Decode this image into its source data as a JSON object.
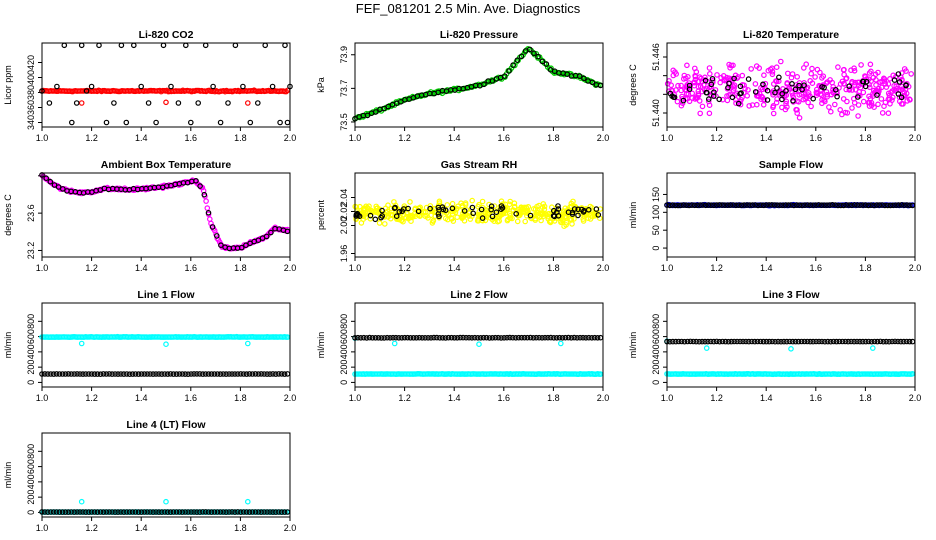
{
  "page_title": "FEF_081201  2.5 Min. Ave. Diagnostics",
  "colors": {
    "black": "#000000",
    "red": "#ff0000",
    "green": "#00cc00",
    "magenta": "#ff00ff",
    "yellow": "#ffff00",
    "blue": "#0000ff",
    "cyan": "#00ffff"
  },
  "chart_data": [
    {
      "id": "li820-co2",
      "type": "scatter",
      "title": "Li-820 CO2",
      "ylabel": "Licor ppm",
      "xlim": [
        1.0,
        2.0
      ],
      "ylim": [
        334,
        446
      ],
      "xticks": [
        "1.0",
        "1.2",
        "1.4",
        "1.6",
        "1.8",
        "2.0"
      ],
      "yticks": [
        {
          "value": 340,
          "label": "340"
        },
        {
          "value": 360,
          "label": "360"
        },
        {
          "value": 380,
          "label": "380"
        },
        {
          "value": 400,
          "label": "400"
        },
        {
          "value": 420,
          "label": "420"
        }
      ],
      "series": [
        {
          "name": "sampled",
          "color": "red",
          "kind": "dense",
          "baseline": 382,
          "noise": 1.2,
          "n": 170,
          "points": [
            [
              1.16,
              366
            ],
            [
              1.5,
              367
            ],
            [
              1.83,
              366
            ]
          ]
        },
        {
          "name": "lines",
          "color": "black",
          "kind": "sparse",
          "points": [
            [
              1.0,
              382
            ],
            [
              1.03,
              366
            ],
            [
              1.06,
              388
            ],
            [
              1.09,
              443
            ],
            [
              1.12,
              340
            ],
            [
              1.14,
              366
            ],
            [
              1.16,
              443
            ],
            [
              1.18,
              382
            ],
            [
              1.2,
              388
            ],
            [
              1.23,
              443
            ],
            [
              1.26,
              340
            ],
            [
              1.29,
              366
            ],
            [
              1.32,
              443
            ],
            [
              1.34,
              340
            ],
            [
              1.37,
              443
            ],
            [
              1.4,
              388
            ],
            [
              1.43,
              366
            ],
            [
              1.46,
              340
            ],
            [
              1.49,
              443
            ],
            [
              1.52,
              388
            ],
            [
              1.55,
              366
            ],
            [
              1.58,
              443
            ],
            [
              1.6,
              340
            ],
            [
              1.63,
              366
            ],
            [
              1.66,
              443
            ],
            [
              1.69,
              388
            ],
            [
              1.72,
              340
            ],
            [
              1.75,
              366
            ],
            [
              1.78,
              443
            ],
            [
              1.81,
              388
            ],
            [
              1.84,
              340
            ],
            [
              1.87,
              366
            ],
            [
              1.9,
              443
            ],
            [
              1.93,
              388
            ],
            [
              1.96,
              340
            ],
            [
              1.98,
              443
            ],
            [
              2.0,
              388
            ],
            [
              1.99,
              340
            ]
          ]
        }
      ]
    },
    {
      "id": "li820-pressure",
      "type": "scatter",
      "title": "Li-820 Pressure",
      "ylabel": "kPa",
      "xlim": [
        1.0,
        2.0
      ],
      "ylim": [
        73.47,
        73.97
      ],
      "xticks": [
        "1.0",
        "1.2",
        "1.4",
        "1.6",
        "1.8",
        "2.0"
      ],
      "yticks": [
        {
          "value": 73.5,
          "label": "73.5"
        },
        {
          "value": 73.7,
          "label": "73.7"
        },
        {
          "value": 73.9,
          "label": "73.9"
        }
      ],
      "series": [
        {
          "name": "sampled",
          "color": "green",
          "kind": "trend",
          "n": 150,
          "noise": 0.012,
          "trend": [
            [
              1.0,
              73.52
            ],
            [
              1.1,
              73.57
            ],
            [
              1.2,
              73.63
            ],
            [
              1.3,
              73.67
            ],
            [
              1.4,
              73.69
            ],
            [
              1.5,
              73.72
            ],
            [
              1.6,
              73.77
            ],
            [
              1.7,
              73.94
            ],
            [
              1.8,
              73.8
            ],
            [
              1.9,
              73.77
            ],
            [
              2.0,
              73.71
            ]
          ]
        },
        {
          "name": "lines",
          "color": "black",
          "kind": "trend",
          "n": 60,
          "noise": 0.01,
          "trend": [
            [
              1.0,
              73.52
            ],
            [
              1.1,
              73.57
            ],
            [
              1.2,
              73.63
            ],
            [
              1.3,
              73.67
            ],
            [
              1.4,
              73.69
            ],
            [
              1.5,
              73.72
            ],
            [
              1.6,
              73.77
            ],
            [
              1.7,
              73.94
            ],
            [
              1.8,
              73.8
            ],
            [
              1.9,
              73.77
            ],
            [
              2.0,
              73.71
            ]
          ]
        }
      ]
    },
    {
      "id": "li820-temperature",
      "type": "scatter",
      "title": "Li-820 Temperature",
      "ylabel": "degrees C",
      "xlim": [
        1.0,
        2.0
      ],
      "ylim": [
        51.4385,
        51.4475
      ],
      "xticks": [
        "1.0",
        "1.2",
        "1.4",
        "1.6",
        "1.8",
        "2.0"
      ],
      "yticks": [
        {
          "value": 51.44,
          "label": "51.440"
        },
        {
          "value": 51.442,
          "label": ""
        },
        {
          "value": 51.444,
          "label": ""
        },
        {
          "value": 51.446,
          "label": "51.446"
        }
      ],
      "series": [
        {
          "name": "sampled",
          "color": "magenta",
          "kind": "scatter-noise",
          "n": 420,
          "center": 51.4425,
          "spread": 0.0035
        },
        {
          "name": "lines",
          "color": "black",
          "kind": "scatter-noise",
          "n": 60,
          "center": 51.4425,
          "spread": 0.0025
        }
      ]
    },
    {
      "id": "ambient-box-temperature",
      "type": "scatter",
      "title": "Ambient Box Temperature",
      "ylabel": "degrees C",
      "xlim": [
        1.0,
        2.0
      ],
      "ylim": [
        23.13,
        24.03
      ],
      "xticks": [
        "1.0",
        "1.2",
        "1.4",
        "1.6",
        "1.8",
        "2.0"
      ],
      "yticks": [
        {
          "value": 23.2,
          "label": "23.2"
        },
        {
          "value": 23.6,
          "label": "23.6"
        },
        {
          "value": 24.0,
          "label": ""
        }
      ],
      "series": [
        {
          "name": "sampled",
          "color": "magenta",
          "kind": "trend",
          "n": 200,
          "noise": 0.02,
          "trend": [
            [
              1.0,
              24.01
            ],
            [
              1.05,
              23.9
            ],
            [
              1.1,
              23.84
            ],
            [
              1.15,
              23.82
            ],
            [
              1.2,
              23.83
            ],
            [
              1.25,
              23.86
            ],
            [
              1.3,
              23.86
            ],
            [
              1.35,
              23.85
            ],
            [
              1.45,
              23.87
            ],
            [
              1.55,
              23.91
            ],
            [
              1.62,
              23.95
            ],
            [
              1.65,
              23.85
            ],
            [
              1.68,
              23.5
            ],
            [
              1.72,
              23.26
            ],
            [
              1.75,
              23.22
            ],
            [
              1.8,
              23.23
            ],
            [
              1.85,
              23.29
            ],
            [
              1.9,
              23.34
            ],
            [
              1.94,
              23.44
            ],
            [
              2.0,
              23.4
            ]
          ]
        },
        {
          "name": "lines",
          "color": "black",
          "kind": "trend",
          "n": 60,
          "noise": 0.01,
          "trend": [
            [
              1.0,
              24.01
            ],
            [
              1.05,
              23.9
            ],
            [
              1.1,
              23.84
            ],
            [
              1.15,
              23.82
            ],
            [
              1.2,
              23.83
            ],
            [
              1.25,
              23.86
            ],
            [
              1.3,
              23.86
            ],
            [
              1.35,
              23.85
            ],
            [
              1.45,
              23.87
            ],
            [
              1.55,
              23.91
            ],
            [
              1.62,
              23.95
            ],
            [
              1.65,
              23.85
            ],
            [
              1.68,
              23.5
            ],
            [
              1.72,
              23.26
            ],
            [
              1.75,
              23.22
            ],
            [
              1.8,
              23.23
            ],
            [
              1.85,
              23.29
            ],
            [
              1.9,
              23.34
            ],
            [
              1.94,
              23.44
            ],
            [
              2.0,
              23.4
            ]
          ]
        }
      ]
    },
    {
      "id": "gas-stream-rh",
      "type": "scatter",
      "title": "Gas Stream RH",
      "ylabel": "percent",
      "xlim": [
        1.0,
        2.0
      ],
      "ylim": [
        1.955,
        2.075
      ],
      "xticks": [
        "1.0",
        "1.2",
        "1.4",
        "1.6",
        "1.8",
        "2.0"
      ],
      "yticks": [
        {
          "value": 1.96,
          "label": "1.96"
        },
        {
          "value": 2.0,
          "label": "2.00"
        },
        {
          "value": 2.02,
          "label": "2.02"
        },
        {
          "value": 2.04,
          "label": "2.04"
        }
      ],
      "series": [
        {
          "name": "sampled",
          "color": "yellow",
          "kind": "scatter-noise",
          "n": 420,
          "center": 2.018,
          "spread": 0.022
        },
        {
          "name": "lines",
          "color": "black",
          "kind": "scatter-noise",
          "n": 60,
          "center": 2.02,
          "spread": 0.015
        }
      ]
    },
    {
      "id": "sample-flow",
      "type": "scatter",
      "title": "Sample Flow",
      "ylabel": "ml/min",
      "xlim": [
        1.0,
        2.0
      ],
      "ylim": [
        -25,
        210
      ],
      "xticks": [
        "1.0",
        "1.2",
        "1.4",
        "1.6",
        "1.8",
        "2.0"
      ],
      "yticks": [
        {
          "value": 0,
          "label": "0"
        },
        {
          "value": 50,
          "label": "50"
        },
        {
          "value": 100,
          "label": "100"
        },
        {
          "value": 150,
          "label": "150"
        }
      ],
      "series": [
        {
          "name": "sampled",
          "color": "blue",
          "kind": "dense",
          "baseline": 120,
          "noise": 1.5,
          "n": 170,
          "points": []
        },
        {
          "name": "lines",
          "color": "black",
          "kind": "dense",
          "baseline": 120,
          "noise": 1.2,
          "n": 90,
          "points": []
        }
      ]
    },
    {
      "id": "line-1-flow",
      "type": "scatter",
      "title": "Line 1 Flow",
      "ylabel": "ml/min",
      "xlim": [
        1.0,
        2.0
      ],
      "ylim": [
        -60,
        1040
      ],
      "xticks": [
        "1.0",
        "1.2",
        "1.4",
        "1.6",
        "1.8",
        "2.0"
      ],
      "yticks": [
        {
          "value": 0,
          "label": "0"
        },
        {
          "value": 200,
          "label": "200"
        },
        {
          "value": 400,
          "label": "400"
        },
        {
          "value": 600,
          "label": "600"
        },
        {
          "value": 800,
          "label": "800"
        }
      ],
      "series": [
        {
          "name": "sampled",
          "color": "cyan",
          "kind": "dense",
          "baseline": 595,
          "noise": 4,
          "n": 170,
          "points": [
            [
              1.16,
              510
            ],
            [
              1.5,
              500
            ],
            [
              1.83,
              510
            ]
          ]
        },
        {
          "name": "lines",
          "color": "black",
          "kind": "dense",
          "baseline": 110,
          "noise": 3,
          "n": 85,
          "points": []
        }
      ]
    },
    {
      "id": "line-2-flow",
      "type": "scatter",
      "title": "Line 2 Flow",
      "ylabel": "ml/min",
      "xlim": [
        1.0,
        2.0
      ],
      "ylim": [
        -60,
        1040
      ],
      "xticks": [
        "1.0",
        "1.2",
        "1.4",
        "1.6",
        "1.8",
        "2.0"
      ],
      "yticks": [
        {
          "value": 0,
          "label": "0"
        },
        {
          "value": 200,
          "label": "200"
        },
        {
          "value": 400,
          "label": "400"
        },
        {
          "value": 600,
          "label": "600"
        },
        {
          "value": 800,
          "label": "800"
        }
      ],
      "series": [
        {
          "name": "sampled",
          "color": "cyan",
          "kind": "dense",
          "baseline": 110,
          "noise": 4,
          "n": 170,
          "points": [
            [
              1.0,
              580
            ],
            [
              1.16,
              510
            ],
            [
              1.5,
              500
            ],
            [
              1.83,
              510
            ]
          ]
        },
        {
          "name": "lines",
          "color": "black",
          "kind": "dense",
          "baseline": 585,
          "noise": 3,
          "n": 85,
          "points": []
        }
      ]
    },
    {
      "id": "line-3-flow",
      "type": "scatter",
      "title": "Line 3 Flow",
      "ylabel": "ml/min",
      "xlim": [
        1.0,
        2.0
      ],
      "ylim": [
        -60,
        1040
      ],
      "xticks": [
        "1.0",
        "1.2",
        "1.4",
        "1.6",
        "1.8",
        "2.0"
      ],
      "yticks": [
        {
          "value": 0,
          "label": "0"
        },
        {
          "value": 200,
          "label": "200"
        },
        {
          "value": 400,
          "label": "400"
        },
        {
          "value": 600,
          "label": "600"
        },
        {
          "value": 800,
          "label": "800"
        }
      ],
      "series": [
        {
          "name": "sampled",
          "color": "cyan",
          "kind": "dense",
          "baseline": 110,
          "noise": 4,
          "n": 170,
          "points": [
            [
              1.0,
              540
            ],
            [
              1.16,
              450
            ],
            [
              1.5,
              440
            ],
            [
              1.83,
              450
            ]
          ]
        },
        {
          "name": "lines",
          "color": "black",
          "kind": "dense",
          "baseline": 535,
          "noise": 3,
          "n": 85,
          "points": []
        }
      ]
    },
    {
      "id": "line-4-lt-flow",
      "type": "scatter",
      "title": "Line 4 (LT) Flow",
      "ylabel": "ml/min",
      "xlim": [
        1.0,
        2.0
      ],
      "ylim": [
        -60,
        1040
      ],
      "xticks": [
        "1.0",
        "1.2",
        "1.4",
        "1.6",
        "1.8",
        "2.0"
      ],
      "yticks": [
        {
          "value": 0,
          "label": "0"
        },
        {
          "value": 200,
          "label": "200"
        },
        {
          "value": 400,
          "label": "400"
        },
        {
          "value": 600,
          "label": "600"
        },
        {
          "value": 800,
          "label": "800"
        }
      ],
      "series": [
        {
          "name": "sampled",
          "color": "cyan",
          "kind": "dense",
          "baseline": 5,
          "noise": 2,
          "n": 170,
          "points": [
            [
              1.16,
              140
            ],
            [
              1.5,
              140
            ],
            [
              1.83,
              140
            ]
          ]
        },
        {
          "name": "lines",
          "color": "black",
          "kind": "dense",
          "baseline": 5,
          "noise": 2,
          "n": 85,
          "points": []
        }
      ]
    }
  ]
}
